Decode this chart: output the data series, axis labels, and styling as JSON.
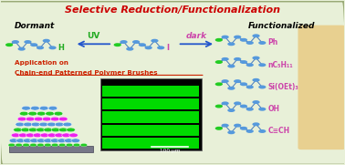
{
  "title": "Selective Reduction/Functionalization",
  "title_color": "#cc0000",
  "bg_color": "#e8f0d8",
  "dormant_label": "Dormant",
  "functionalized_label": "Functionalized",
  "uv_label": "UV",
  "dark_label": "dark",
  "h_label": "H",
  "i_label": "I",
  "app_label_1": "Application on",
  "app_label_2": "Chain-end Patterned Polymer Brushes",
  "func_labels": [
    "Ph",
    "nC₅H₁₁",
    "Si(OEt)₃",
    "OH",
    "C≡CH"
  ],
  "green_circle_color": "#22cc22",
  "blue_circle_color": "#5599dd",
  "magenta_circle_color": "#ee22ee",
  "arrow_color": "#2255cc",
  "uv_arrow_color": "#22aa22",
  "dark_arrow_color": "#cc44aa",
  "highlight_box_color": "#e8d090",
  "scalebar_color": "#ffffff"
}
